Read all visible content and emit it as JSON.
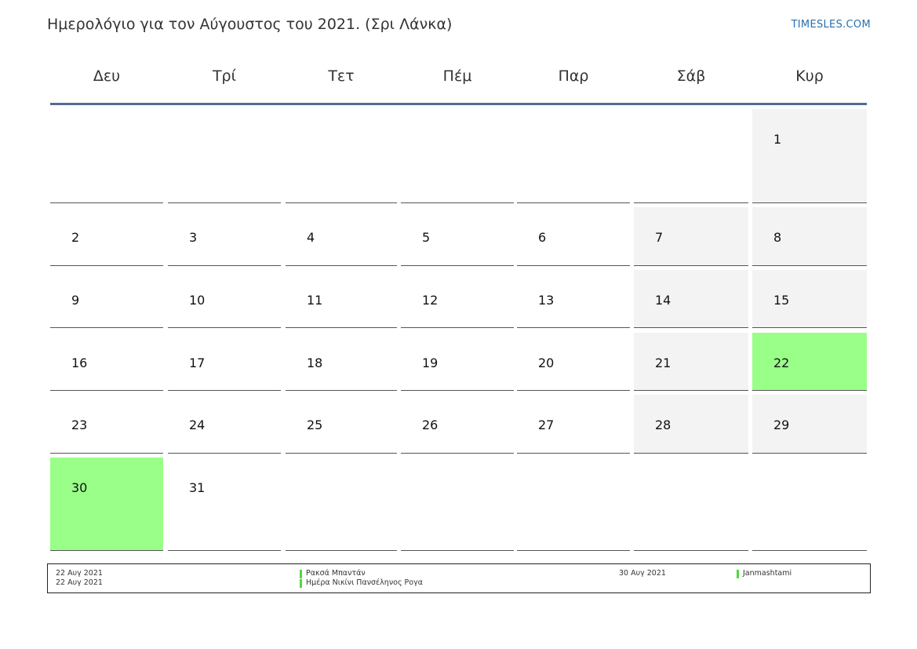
{
  "header": {
    "title": "Ημερολόγιο για τον Αύγουστος του 2021. (Σρι Λάνκα)",
    "site": "TIMESLES.COM"
  },
  "weekdays": [
    "Δευ",
    "Τρί",
    "Τετ",
    "Πέμ",
    "Παρ",
    "Σάβ",
    "Κυρ"
  ],
  "weeks": [
    [
      "",
      "",
      "",
      "",
      "",
      "",
      "1"
    ],
    [
      "2",
      "3",
      "4",
      "5",
      "6",
      "7",
      "8"
    ],
    [
      "9",
      "10",
      "11",
      "12",
      "13",
      "14",
      "15"
    ],
    [
      "16",
      "17",
      "18",
      "19",
      "20",
      "21",
      "22"
    ],
    [
      "23",
      "24",
      "25",
      "26",
      "27",
      "28",
      "29"
    ],
    [
      "30",
      "31",
      "",
      "",
      "",
      "",
      ""
    ]
  ],
  "holiday_days": [
    "22",
    "30"
  ],
  "colors": {
    "weekend": "#f3f3f3",
    "holiday": "#99ff88",
    "header_rule": "#4f6d8f",
    "link": "#2a6fb0",
    "legend_mark": "#4ddb3a"
  },
  "legend": {
    "left": [
      {
        "date": "22 Αυγ 2021",
        "name": "Ρακσά Μπαντάν"
      },
      {
        "date": "22 Αυγ 2021",
        "name": "Ημέρα Νικίνι Πανσέληνος Ρογα"
      }
    ],
    "right": [
      {
        "date": "30 Αυγ 2021",
        "name": "Janmashtami"
      }
    ]
  }
}
